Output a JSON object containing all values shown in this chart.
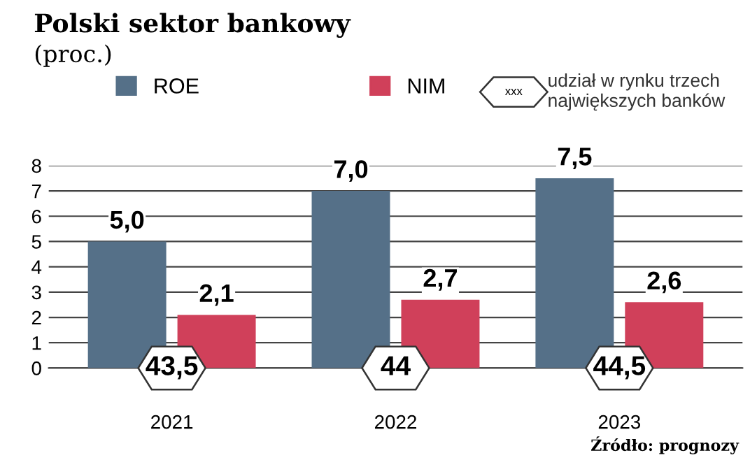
{
  "chart_data": {
    "type": "bar",
    "title": "Polski sektor bankowy",
    "subtitle": "(proc.)",
    "categories": [
      "2021",
      "2022",
      "2023"
    ],
    "series": [
      {
        "name": "ROE",
        "color": "#557088",
        "values": [
          5.0,
          7.0,
          7.5
        ],
        "value_labels": [
          "5,0",
          "7,0",
          "7,5"
        ]
      },
      {
        "name": "NIM",
        "color": "#d0405a",
        "values": [
          2.1,
          2.7,
          2.6
        ],
        "value_labels": [
          "2,1",
          "2,7",
          "2,6"
        ]
      }
    ],
    "annotations": [
      {
        "text": "43,5",
        "x": "2021",
        "y": 0
      },
      {
        "text": "44",
        "x": "2022",
        "y": 0
      },
      {
        "text": "44,5",
        "x": "2023",
        "y": 0
      },
      "xxx",
      "udział w rynku trzech\nnajwiększych banków",
      "Źródło: prognozy"
    ],
    "ylim": [
      0,
      8
    ],
    "yticks": [
      0,
      1,
      2,
      3,
      4,
      5,
      6,
      7,
      8
    ],
    "grid": "y",
    "legend": "top"
  }
}
